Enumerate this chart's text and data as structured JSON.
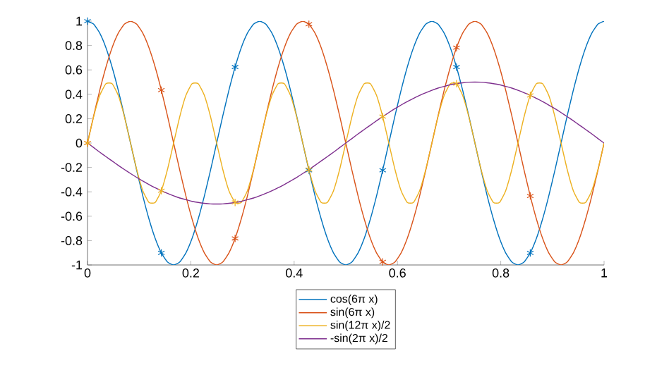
{
  "chart_data": {
    "type": "line",
    "legend": "bottom",
    "grid": false,
    "xlim": [
      0,
      1
    ],
    "ylim": [
      -1,
      1
    ],
    "xticks": [
      0,
      0.2,
      0.4,
      0.6,
      0.8,
      1
    ],
    "yticks": [
      -1,
      -0.8,
      -0.6,
      -0.4,
      -0.2,
      0,
      0.2,
      0.4,
      0.6,
      0.8,
      1
    ],
    "x": [
      0,
      0.0119,
      0.0238,
      0.0357,
      0.0476,
      0.0595,
      0.0714,
      0.0833,
      0.0952,
      0.1071,
      0.119,
      0.131,
      0.1429,
      0.1548,
      0.1667,
      0.1786,
      0.1905,
      0.2024,
      0.2143,
      0.2262,
      0.2381,
      0.25,
      0.2619,
      0.2738,
      0.2857,
      0.2976,
      0.3095,
      0.3214,
      0.3333,
      0.3452,
      0.3571,
      0.369,
      0.381,
      0.3929,
      0.4048,
      0.4167,
      0.4286,
      0.4405,
      0.4524,
      0.4643,
      0.4762,
      0.4881,
      0.5,
      0.5119,
      0.5238,
      0.5357,
      0.5476,
      0.5595,
      0.5714,
      0.5833,
      0.5952,
      0.6071,
      0.619,
      0.631,
      0.6429,
      0.6548,
      0.6667,
      0.6786,
      0.6905,
      0.7024,
      0.7143,
      0.7262,
      0.7381,
      0.75,
      0.7619,
      0.7738,
      0.7857,
      0.7976,
      0.8095,
      0.8214,
      0.8333,
      0.8452,
      0.8571,
      0.869,
      0.881,
      0.8929,
      0.9048,
      0.9167,
      0.9286,
      0.9405,
      0.9524,
      0.9643,
      0.9762,
      0.9881,
      1
    ],
    "series": [
      {
        "name": "cos(6π x)",
        "color": "#0072bd",
        "values": [
          1,
          0.975,
          0.901,
          0.782,
          0.623,
          0.434,
          0.223,
          0,
          -0.223,
          -0.434,
          -0.623,
          -0.782,
          -0.901,
          -0.975,
          -1,
          -0.975,
          -0.901,
          -0.782,
          -0.623,
          -0.434,
          -0.223,
          0,
          0.223,
          0.434,
          0.623,
          0.782,
          0.901,
          0.975,
          1,
          0.975,
          0.901,
          0.782,
          0.623,
          0.434,
          0.223,
          0,
          -0.223,
          -0.434,
          -0.623,
          -0.782,
          -0.901,
          -0.975,
          -1,
          -0.975,
          -0.901,
          -0.782,
          -0.623,
          -0.434,
          -0.223,
          0,
          0.223,
          0.434,
          0.623,
          0.782,
          0.901,
          0.975,
          1,
          0.975,
          0.901,
          0.782,
          0.623,
          0.434,
          0.223,
          0,
          -0.223,
          -0.434,
          -0.623,
          -0.782,
          -0.901,
          -0.975,
          -1,
          -0.975,
          -0.901,
          -0.782,
          -0.623,
          -0.434,
          -0.223,
          0,
          0.223,
          0.434,
          0.623,
          0.782,
          0.901,
          0.975,
          1
        ]
      },
      {
        "name": "sin(6π x)",
        "color": "#d95319",
        "values": [
          0,
          0.223,
          0.434,
          0.623,
          0.782,
          0.901,
          0.975,
          1,
          0.975,
          0.901,
          0.782,
          0.623,
          0.434,
          0.223,
          0,
          -0.223,
          -0.434,
          -0.623,
          -0.782,
          -0.901,
          -0.975,
          -1,
          -0.975,
          -0.901,
          -0.782,
          -0.623,
          -0.434,
          -0.223,
          0,
          0.223,
          0.434,
          0.623,
          0.782,
          0.901,
          0.975,
          1,
          0.975,
          0.901,
          0.782,
          0.623,
          0.434,
          0.223,
          0,
          -0.223,
          -0.434,
          -0.623,
          -0.782,
          -0.901,
          -0.975,
          -1,
          -0.975,
          -0.901,
          -0.782,
          -0.623,
          -0.434,
          -0.223,
          0,
          0.223,
          0.434,
          0.623,
          0.782,
          0.901,
          0.975,
          1,
          0.975,
          0.901,
          0.782,
          0.623,
          0.434,
          0.223,
          0,
          -0.223,
          -0.434,
          -0.623,
          -0.782,
          -0.901,
          -0.975,
          -1,
          -0.975,
          -0.901,
          -0.782,
          -0.623,
          -0.434,
          -0.223,
          0
        ]
      },
      {
        "name": "sin(12π x)/2",
        "color": "#edb120",
        "values": [
          0,
          0.217,
          0.391,
          0.487,
          0.487,
          0.391,
          0.217,
          0,
          -0.217,
          -0.391,
          -0.487,
          -0.487,
          -0.391,
          -0.217,
          0,
          0.217,
          0.391,
          0.487,
          0.487,
          0.391,
          0.217,
          0,
          -0.217,
          -0.391,
          -0.487,
          -0.487,
          -0.391,
          -0.217,
          0,
          0.217,
          0.391,
          0.487,
          0.487,
          0.391,
          0.217,
          0,
          -0.217,
          -0.391,
          -0.487,
          -0.487,
          -0.391,
          -0.217,
          0,
          0.217,
          0.391,
          0.487,
          0.487,
          0.391,
          0.217,
          0,
          -0.217,
          -0.391,
          -0.487,
          -0.487,
          -0.391,
          -0.217,
          0,
          0.217,
          0.391,
          0.487,
          0.487,
          0.391,
          0.217,
          0,
          -0.217,
          -0.391,
          -0.487,
          -0.487,
          -0.391,
          -0.217,
          0,
          0.217,
          0.391,
          0.487,
          0.487,
          0.391,
          0.217,
          0,
          -0.217,
          -0.391,
          -0.487,
          -0.487,
          -0.391,
          -0.217,
          0
        ]
      },
      {
        "name": "-sin(2π x)/2",
        "color": "#7e2f8e",
        "values": [
          0,
          -0.037,
          -0.075,
          -0.111,
          -0.147,
          -0.183,
          -0.217,
          -0.25,
          -0.282,
          -0.312,
          -0.34,
          -0.367,
          -0.391,
          -0.413,
          -0.433,
          -0.451,
          -0.465,
          -0.478,
          -0.487,
          -0.494,
          -0.499,
          -0.5,
          -0.499,
          -0.494,
          -0.487,
          -0.478,
          -0.465,
          -0.451,
          -0.433,
          -0.413,
          -0.391,
          -0.367,
          -0.34,
          -0.312,
          -0.282,
          -0.25,
          -0.217,
          -0.183,
          -0.147,
          -0.111,
          -0.075,
          -0.037,
          0,
          0.037,
          0.075,
          0.111,
          0.147,
          0.183,
          0.217,
          0.25,
          0.282,
          0.312,
          0.34,
          0.367,
          0.391,
          0.413,
          0.433,
          0.451,
          0.465,
          0.478,
          0.487,
          0.494,
          0.499,
          0.5,
          0.499,
          0.494,
          0.487,
          0.478,
          0.465,
          0.451,
          0.433,
          0.413,
          0.391,
          0.367,
          0.34,
          0.312,
          0.282,
          0.25,
          0.217,
          0.183,
          0.147,
          0.111,
          0.075,
          0.037,
          0
        ]
      },
      {
        "type": "scatter",
        "marker": "cross",
        "color": "#0072bd",
        "x": [
          0,
          0.1429,
          0.2857,
          0.4286,
          0.5714,
          0.7143,
          0.8571
        ],
        "values": [
          1,
          -0.901,
          0.623,
          -0.223,
          -0.223,
          0.623,
          -0.901
        ]
      },
      {
        "type": "scatter",
        "marker": "cross",
        "color": "#d95319",
        "x": [
          0,
          0.1429,
          0.2857,
          0.4286,
          0.5714,
          0.7143,
          0.8571
        ],
        "values": [
          0,
          0.434,
          -0.782,
          0.975,
          -0.975,
          0.782,
          -0.434
        ]
      },
      {
        "type": "scatter",
        "marker": "cross",
        "color": "#edb120",
        "x": [
          0,
          0.1429,
          0.2857,
          0.4286,
          0.5714,
          0.7143,
          0.8571
        ],
        "values": [
          0,
          -0.391,
          -0.487,
          -0.217,
          0.217,
          0.487,
          0.391
        ]
      }
    ]
  }
}
